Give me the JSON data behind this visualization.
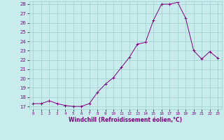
{
  "x": [
    0,
    1,
    2,
    3,
    4,
    5,
    6,
    7,
    8,
    9,
    10,
    11,
    12,
    13,
    14,
    15,
    16,
    17,
    18,
    19,
    20,
    21,
    22,
    23
  ],
  "y": [
    17.3,
    17.3,
    17.6,
    17.3,
    17.1,
    17.0,
    17.0,
    17.3,
    18.5,
    19.4,
    20.1,
    21.2,
    22.3,
    23.7,
    23.9,
    26.3,
    28.0,
    28.0,
    28.2,
    26.5,
    23.0,
    22.1,
    22.9,
    22.2
  ],
  "line_color": "#800080",
  "marker": "+",
  "marker_color": "#800080",
  "bg_color": "#c8ecec",
  "grid_color": "#a0cccc",
  "xlabel": "Windchill (Refroidissement éolien,°C)",
  "xlabel_color": "#800080",
  "tick_color": "#800080",
  "ylim": [
    17,
    28
  ],
  "yticks": [
    17,
    18,
    19,
    20,
    21,
    22,
    23,
    24,
    25,
    26,
    27,
    28
  ],
  "xlim": [
    -0.5,
    23.5
  ],
  "xticks": [
    0,
    1,
    2,
    3,
    4,
    5,
    6,
    7,
    8,
    9,
    10,
    11,
    12,
    13,
    14,
    15,
    16,
    17,
    18,
    19,
    20,
    21,
    22,
    23
  ]
}
